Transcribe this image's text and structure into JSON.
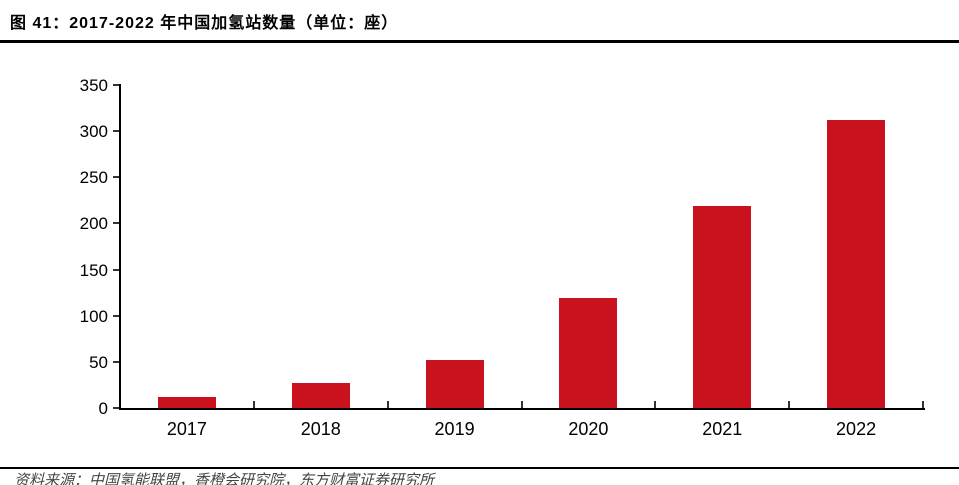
{
  "header": {
    "title": "图 41：2017-2022 年中国加氢站数量（单位：座）"
  },
  "footer": {
    "source_text": "资料来源：中国氢能联盟，香橙会研究院，东方财富证券研究所"
  },
  "chart_data": {
    "type": "bar",
    "title": "2017-2022 年中国加氢站数量",
    "unit": "座",
    "categories": [
      "2017",
      "2018",
      "2019",
      "2020",
      "2021",
      "2022"
    ],
    "values": [
      12,
      27,
      52,
      119,
      219,
      312
    ],
    "xlabel": "",
    "ylabel": "",
    "ylim": [
      0,
      350
    ],
    "yticks": [
      0,
      50,
      100,
      150,
      200,
      250,
      300,
      350
    ],
    "grid": false,
    "legend": false,
    "bar_color": "#C9121E",
    "axis_color": "#000000",
    "title_color": "#000000",
    "rule_color": "#000000"
  }
}
